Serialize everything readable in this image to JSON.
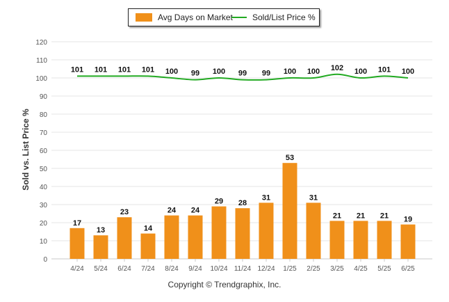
{
  "legend": {
    "bar_label": "Avg Days on Market",
    "line_label": "Sold/List Price %"
  },
  "yaxis_title": "Sold vs. List Price %",
  "footer": "Copyright © Trendgraphix, Inc.",
  "colors": {
    "bar": "#f0901a",
    "line": "#22aa22",
    "grid": "#e6e6e6",
    "axis_text": "#555555",
    "label_text": "#111111"
  },
  "chart_data": {
    "type": "bar",
    "categories": [
      "4/24",
      "5/24",
      "6/24",
      "7/24",
      "8/24",
      "9/24",
      "10/24",
      "11/24",
      "12/24",
      "1/25",
      "2/25",
      "3/25",
      "4/25",
      "5/25",
      "6/25"
    ],
    "series": [
      {
        "name": "Avg Days on Market",
        "type": "bar",
        "values": [
          17,
          13,
          23,
          14,
          24,
          24,
          29,
          28,
          31,
          53,
          31,
          21,
          21,
          21,
          19
        ]
      },
      {
        "name": "Sold/List Price %",
        "type": "line",
        "values": [
          101,
          101,
          101,
          101,
          100,
          99,
          100,
          99,
          99,
          100,
          100,
          102,
          100,
          101,
          100
        ]
      }
    ],
    "ylabel": "Sold vs. List Price %",
    "ylim": [
      0,
      120
    ],
    "yticks": [
      0,
      10,
      20,
      30,
      40,
      50,
      60,
      70,
      80,
      90,
      100,
      110,
      120
    ],
    "grid": true,
    "legend_position": "top-center"
  }
}
